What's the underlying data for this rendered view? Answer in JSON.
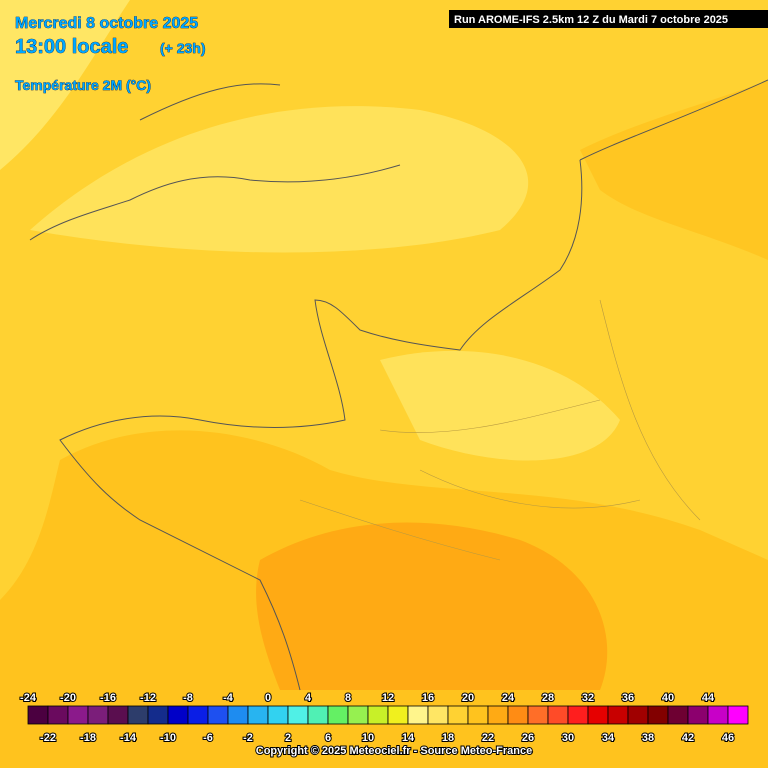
{
  "header": {
    "date": "Mercredi 8 octobre 2025",
    "time": "13:00 locale",
    "lead": "(+ 23h)",
    "variable": "Température 2M (°C)",
    "run": "Run AROME-IFS 2.5km 12 Z du Mardi 7 octobre 2025"
  },
  "scale": {
    "values": [
      -24,
      -22,
      -20,
      -18,
      -16,
      -14,
      -12,
      -10,
      -8,
      -6,
      -4,
      -2,
      0,
      2,
      4,
      6,
      8,
      10,
      12,
      14,
      16,
      18,
      20,
      22,
      24,
      26,
      28,
      30,
      32,
      34,
      36,
      38,
      40,
      42,
      44,
      46
    ],
    "colors": [
      "#4b0040",
      "#6a0a5e",
      "#8b1a8b",
      "#7b1e7a",
      "#5a0e4f",
      "#2d3d6b",
      "#142c8c",
      "#0000c8",
      "#0a1ee6",
      "#1e50f0",
      "#1e8cf0",
      "#28b4f0",
      "#32d2f0",
      "#50f0e6",
      "#50f0b4",
      "#64f064",
      "#96f050",
      "#c8f028",
      "#f0f01e",
      "#fff58c",
      "#ffe664",
      "#ffd232",
      "#ffc31e",
      "#ffaa14",
      "#ff8c14",
      "#ff6e28",
      "#ff4b28",
      "#ff1e1e",
      "#e60000",
      "#c80000",
      "#a00000",
      "#820000",
      "#6e0032",
      "#8c006e",
      "#c800c8",
      "#ff00ff"
    ]
  },
  "footer": {
    "copyright": "Copyright © 2025 Meteociel.fr - Source Meteo-France"
  }
}
